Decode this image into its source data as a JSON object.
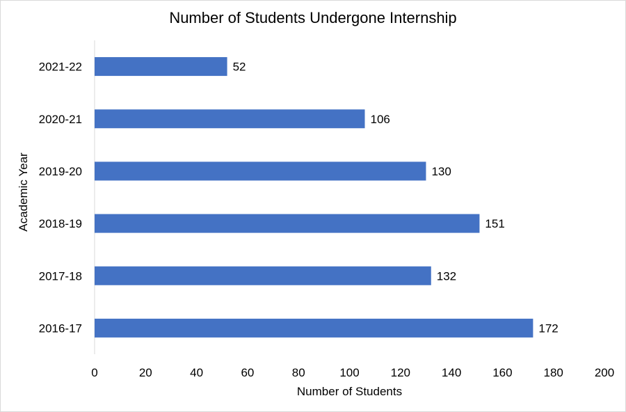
{
  "chart_data": {
    "type": "bar",
    "orientation": "horizontal",
    "title": "Number of Students Undergone Internship",
    "xlabel": "Number of Students",
    "ylabel": "Academic Year",
    "categories": [
      "2016-17",
      "2017-18",
      "2018-19",
      "2019-20",
      "2020-21",
      "2021-22"
    ],
    "values": [
      172,
      132,
      151,
      130,
      106,
      52
    ],
    "xlim": [
      0,
      200
    ],
    "x_ticks": [
      0,
      20,
      40,
      60,
      80,
      100,
      120,
      140,
      160,
      180,
      200
    ],
    "grid": false,
    "legend": "none",
    "data_labels": true,
    "bar_color": "#4472c4"
  }
}
